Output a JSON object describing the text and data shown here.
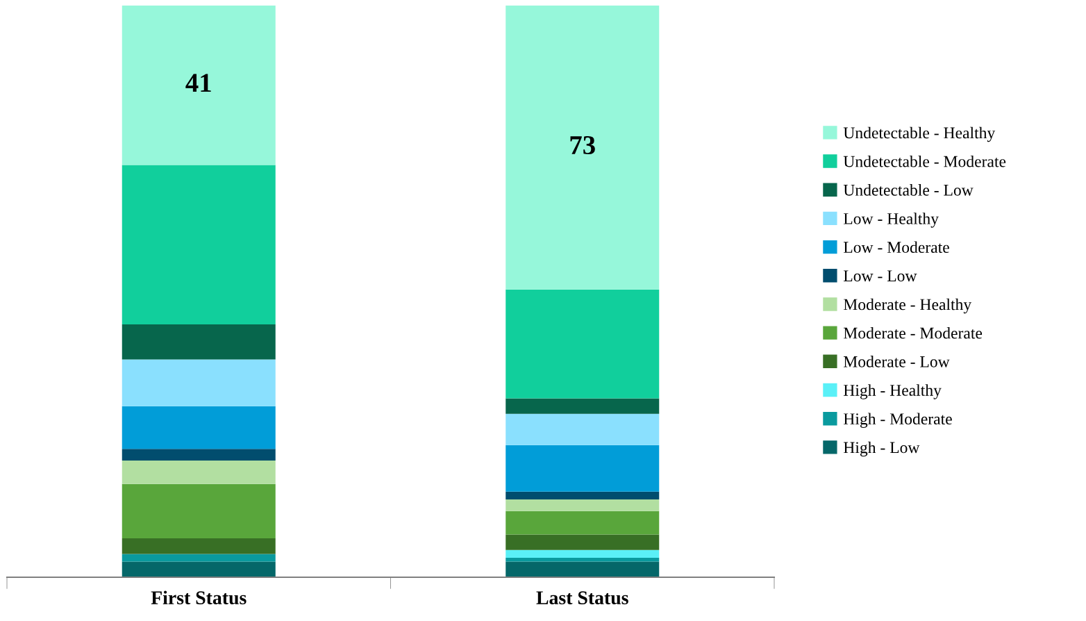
{
  "chart_data": {
    "type": "bar",
    "stacked": true,
    "categories": [
      "First Status",
      "Last Status"
    ],
    "legend": "right",
    "series": [
      {
        "name": "High - Low",
        "color": "#056769",
        "values": [
          4,
          4
        ]
      },
      {
        "name": "High - Moderate",
        "color": "#0a9a9e",
        "values": [
          2,
          1
        ]
      },
      {
        "name": "High - Healthy",
        "color": "#5af0f7",
        "values": [
          0,
          2
        ]
      },
      {
        "name": "Moderate - Low",
        "color": "#386f25",
        "values": [
          4,
          4
        ]
      },
      {
        "name": "Moderate - Moderate",
        "color": "#59a63b",
        "values": [
          14,
          6
        ]
      },
      {
        "name": "Moderate - Healthy",
        "color": "#b2dfa1",
        "values": [
          6,
          3
        ]
      },
      {
        "name": "Low - Low",
        "color": "#014d6e",
        "values": [
          3,
          2
        ]
      },
      {
        "name": "Low - Moderate",
        "color": "#019dd8",
        "values": [
          11,
          12
        ]
      },
      {
        "name": "Low - Healthy",
        "color": "#8ae0fe",
        "values": [
          12,
          8
        ]
      },
      {
        "name": "Undetectable - Low",
        "color": "#07664c",
        "values": [
          9,
          4
        ]
      },
      {
        "name": "Undetectable - Moderate",
        "color": "#11cf9c",
        "values": [
          41,
          28
        ]
      },
      {
        "name": "Undetectable - Healthy",
        "color": "#96f7da",
        "values": [
          41,
          73
        ],
        "value_labels": [
          "41",
          "73"
        ]
      }
    ]
  }
}
